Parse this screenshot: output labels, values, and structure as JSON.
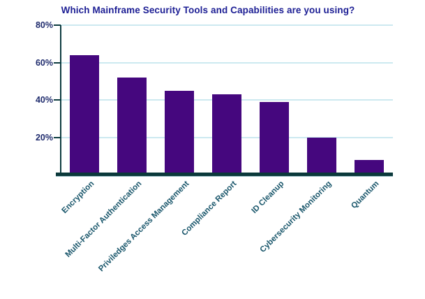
{
  "chart_data": {
    "type": "bar",
    "title": "Which Mainframe Security Tools and Capabilities are you using?",
    "categories": [
      "Encryption",
      "Multi-Factor Authentication",
      "Priviledges Access Management",
      "Compliance Report",
      "ID Cleanup",
      "Cybersecurity Monitoring",
      "Quantum"
    ],
    "values": [
      64,
      52,
      45,
      43,
      39,
      20,
      8
    ],
    "unit": "%",
    "xlabel": "",
    "ylabel": "",
    "ylim": [
      0,
      80
    ],
    "ytick_values": [
      20,
      40,
      60,
      80
    ],
    "ytick_labels": [
      "20%",
      "40%",
      "60%",
      "80%"
    ],
    "grid": true,
    "legend": "none",
    "colors": {
      "bar": "#45077E",
      "title": "#1C1E94",
      "ytick_label": "#1F2B6D",
      "xtick_label": "#19566B",
      "axis": "#0D3C40",
      "baseline": "#0B393B",
      "baseline_shadow": "#AACCD3",
      "gridline": "#CCE9F0",
      "background": "#FFFFFF"
    }
  }
}
